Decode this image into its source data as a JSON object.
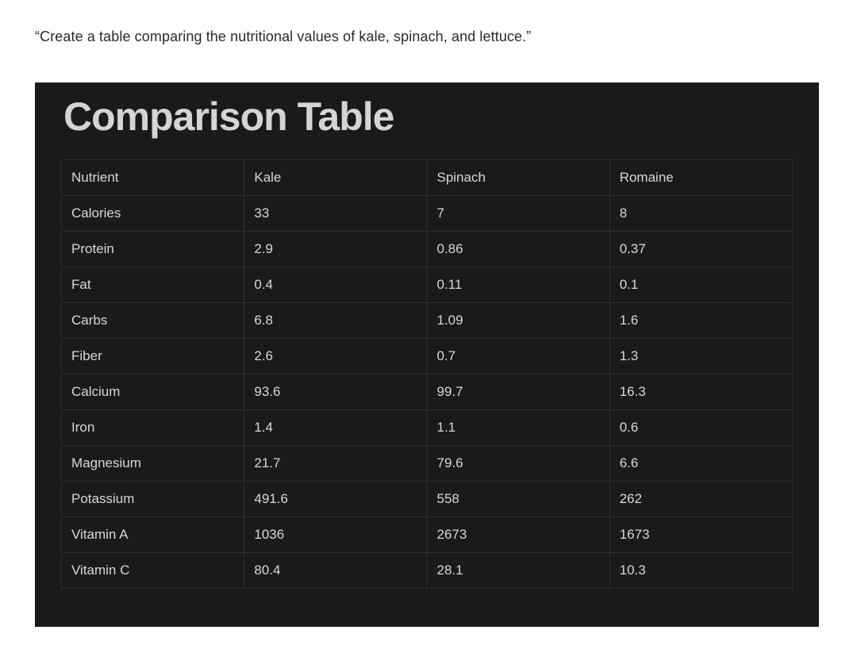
{
  "prompt": "“Create a table comparing the nutritional values of kale, spinach, and lettuce.”",
  "title": "Comparison Table",
  "table": {
    "headers": [
      "Nutrient",
      "Kale",
      "Spinach",
      "Romaine"
    ],
    "rows": [
      [
        "Calories",
        "33",
        "7",
        "8"
      ],
      [
        "Protein",
        "2.9",
        "0.86",
        "0.37"
      ],
      [
        "Fat",
        "0.4",
        "0.11",
        "0.1"
      ],
      [
        "Carbs",
        "6.8",
        "1.09",
        "1.6"
      ],
      [
        "Fiber",
        "2.6",
        "0.7",
        "1.3"
      ],
      [
        "Calcium",
        "93.6",
        "99.7",
        "16.3"
      ],
      [
        "Iron",
        "1.4",
        "1.1",
        "0.6"
      ],
      [
        "Magnesium",
        "21.7",
        "79.6",
        "6.6"
      ],
      [
        "Potassium",
        "491.6",
        "558",
        "262"
      ],
      [
        "Vitamin A",
        "1036",
        "2673",
        "1673"
      ],
      [
        "Vitamin C",
        "80.4",
        "28.1",
        "10.3"
      ]
    ]
  }
}
